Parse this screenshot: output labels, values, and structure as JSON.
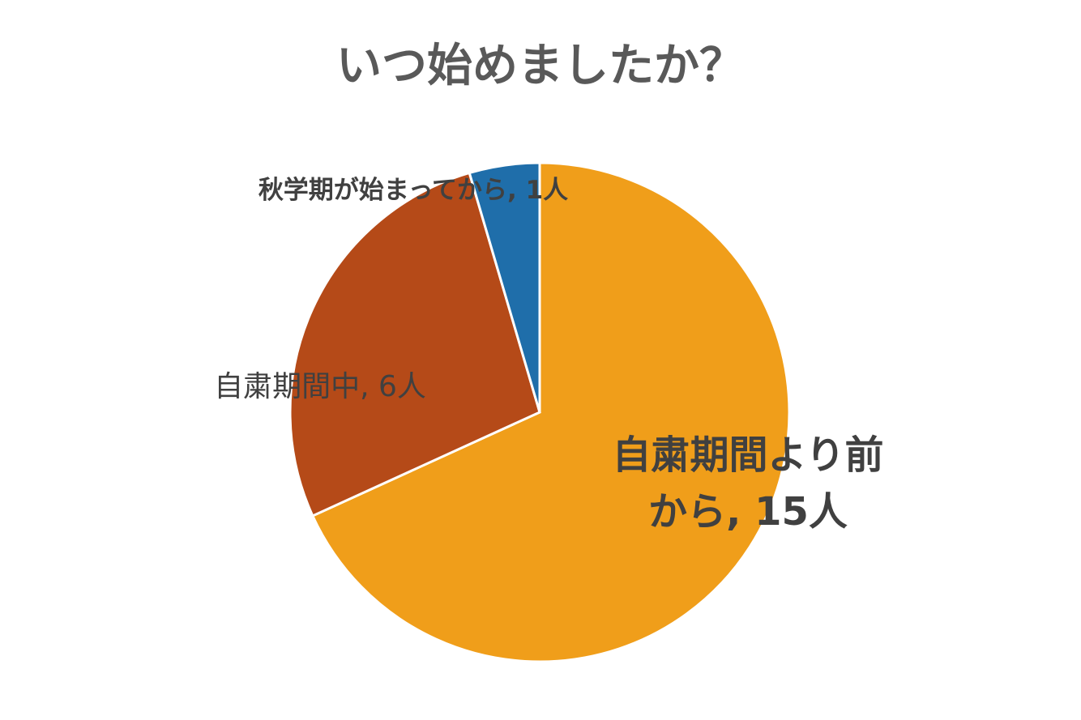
{
  "chart_data": {
    "type": "pie",
    "title": "いつ始めましたか？",
    "values": [
      15,
      6,
      1
    ],
    "value_labels": [
      "自粛期間より前から, 15人",
      "自粛期間中, 6人",
      "秋学期が始まってから, 1人"
    ],
    "colors": [
      "#f09e1a",
      "#b54a18",
      "#1f6eaa"
    ]
  }
}
